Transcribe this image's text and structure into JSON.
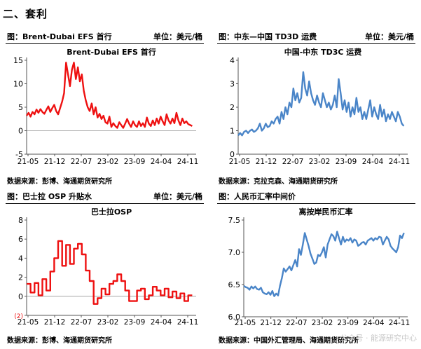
{
  "section": {
    "title": "二、套利"
  },
  "watermark": "公众号 · 能源研究中心",
  "colors": {
    "red": "#ee1111",
    "blue": "#4a85c8",
    "minus2": "#ee1111"
  },
  "panels": [
    {
      "id": "efs",
      "header_title": "图：Brent-Dubai EFS 首行",
      "header_unit": "单位：美元/桶",
      "source": "数据来源：彭博、海通期货研究所"
    },
    {
      "id": "td3c",
      "header_title": "图：中东—中国 TD3D 运费",
      "header_unit": "单位：美元/桶",
      "source": "数据来源：克拉克森、海通期货研究所"
    },
    {
      "id": "osp",
      "header_title": "图：巴士拉 OSP 升贴水",
      "header_unit": "单位：美元/桶",
      "source": "数据来源：彭博、海通期货研究所"
    },
    {
      "id": "cny",
      "header_title": "图：人民币汇率中间价",
      "header_unit": "",
      "source": "数据来源：中国外汇管理局、海通期货研究所"
    }
  ],
  "chart_data": [
    {
      "type": "line",
      "title": "Brent-Dubai EFS 首行",
      "color": "#ee1111",
      "ylim": [
        -5,
        15
      ],
      "yticks": [
        "-5",
        "0",
        "5",
        "10",
        "15"
      ],
      "ytick_values": [
        -5,
        0,
        5,
        10,
        15
      ],
      "x_tick_labels": [
        "21-05",
        "21-12",
        "22-07",
        "23-02",
        "23-09",
        "24-04",
        "24-11"
      ],
      "x_range": [
        0,
        43
      ],
      "x": [
        0,
        0.5,
        1,
        1.5,
        2,
        2.5,
        3,
        3.5,
        4,
        4.5,
        5,
        5.5,
        6,
        6.5,
        7,
        7.5,
        8,
        8.5,
        9,
        9.5,
        10,
        10.5,
        11,
        11.5,
        12,
        12.5,
        13,
        13.5,
        14,
        14.5,
        15,
        15.5,
        16,
        16.5,
        17,
        17.5,
        18,
        18.5,
        19,
        19.5,
        20,
        20.5,
        21,
        21.5,
        22,
        22.5,
        23,
        23.5,
        24,
        24.5,
        25,
        25.5,
        26,
        26.5,
        27,
        27.5,
        28,
        28.5,
        29,
        29.5,
        30,
        30.5,
        31,
        31.5,
        32,
        32.5,
        33,
        33.5,
        34,
        34.5,
        35,
        35.5,
        36,
        36.5,
        37,
        37.5,
        38,
        38.5,
        39,
        39.5,
        40,
        40.5,
        41,
        41.5,
        42
      ],
      "values": [
        3.2,
        3.8,
        3.0,
        4.0,
        3.5,
        4.5,
        3.8,
        4.6,
        4.0,
        3.6,
        4.4,
        5.2,
        4.0,
        4.8,
        5.5,
        4.2,
        3.5,
        4.8,
        6.2,
        8.0,
        14.5,
        12.0,
        9.5,
        13.0,
        14.5,
        11.0,
        13.5,
        10.5,
        12.0,
        8.5,
        6.5,
        5.0,
        4.2,
        5.8,
        3.5,
        5.0,
        2.8,
        3.6,
        2.5,
        3.2,
        1.8,
        1.5,
        3.0,
        0.8,
        1.6,
        1.0,
        0.6,
        1.8,
        1.2,
        0.6,
        1.5,
        2.5,
        1.5,
        0.8,
        2.0,
        1.2,
        0.8,
        2.0,
        1.0,
        1.6,
        0.8,
        2.8,
        1.5,
        1.0,
        2.2,
        1.2,
        2.6,
        1.5,
        3.0,
        2.0,
        1.2,
        3.5,
        2.2,
        1.5,
        2.6,
        1.6,
        3.8,
        2.2,
        1.2,
        2.6,
        1.6,
        2.0,
        1.4,
        1.2,
        1.0
      ]
    },
    {
      "type": "line",
      "title": "中国-中东 TD3C 运费",
      "color": "#4a85c8",
      "ylim": [
        0,
        4
      ],
      "yticks": [
        "0",
        "1",
        "2",
        "3",
        "4"
      ],
      "ytick_values": [
        0,
        1,
        2,
        3,
        4
      ],
      "x_tick_labels": [
        "21-05",
        "21-12",
        "22-07",
        "23-02",
        "23-09",
        "24-04",
        "24-11"
      ],
      "x_range": [
        0,
        43
      ],
      "x": [
        0,
        0.5,
        1,
        1.5,
        2,
        2.5,
        3,
        3.5,
        4,
        4.5,
        5,
        5.5,
        6,
        6.5,
        7,
        7.5,
        8,
        8.5,
        9,
        9.5,
        10,
        10.5,
        11,
        11.5,
        12,
        12.5,
        13,
        13.5,
        14,
        14.5,
        15,
        15.5,
        16,
        16.5,
        17,
        17.5,
        18,
        18.5,
        19,
        19.5,
        20,
        20.5,
        21,
        21.5,
        22,
        22.5,
        23,
        23.5,
        24,
        24.5,
        25,
        25.5,
        26,
        26.5,
        27,
        27.5,
        28,
        28.5,
        29,
        29.5,
        30,
        30.5,
        31,
        31.5,
        32,
        32.5,
        33,
        33.5,
        34,
        34.5,
        35,
        35.5,
        36,
        36.5,
        37,
        37.5,
        38,
        38.5,
        39,
        39.5,
        40,
        40.5,
        41,
        41.5,
        42
      ],
      "values": [
        0.8,
        0.9,
        0.8,
        0.95,
        1.0,
        0.9,
        1.0,
        1.05,
        0.95,
        1.0,
        1.1,
        1.3,
        1.0,
        1.1,
        1.3,
        1.15,
        1.2,
        1.4,
        1.3,
        1.5,
        1.6,
        1.3,
        1.8,
        1.5,
        2.0,
        1.7,
        2.2,
        2.0,
        2.8,
        2.3,
        2.6,
        2.2,
        2.4,
        3.5,
        2.8,
        2.5,
        3.1,
        2.6,
        2.3,
        2.1,
        2.5,
        2.2,
        2.0,
        2.6,
        2.3,
        2.0,
        2.2,
        1.9,
        2.1,
        2.5,
        2.0,
        3.2,
        2.6,
        1.9,
        2.3,
        1.8,
        2.2,
        1.6,
        2.0,
        1.7,
        2.4,
        1.8,
        2.0,
        1.5,
        1.8,
        1.5,
        1.9,
        2.3,
        1.6,
        2.0,
        1.7,
        1.5,
        2.1,
        1.6,
        1.9,
        1.4,
        1.7,
        1.5,
        1.8,
        1.6,
        1.4,
        1.8,
        1.6,
        1.3,
        1.2
      ]
    },
    {
      "type": "line",
      "title": "巴士拉OSP",
      "color": "#ee1111",
      "ylim": [
        -2,
        8
      ],
      "yticks": [
        "(2)",
        "0",
        "2",
        "4",
        "6",
        "8"
      ],
      "ytick_values": [
        -2,
        0,
        2,
        4,
        6,
        8
      ],
      "x_tick_labels": [
        "21-05",
        "21-12",
        "22-07",
        "23-02",
        "23-09",
        "24-04",
        "24-11"
      ],
      "x_range": [
        0,
        43
      ],
      "x": [
        0,
        1,
        1,
        2,
        2,
        3,
        3,
        4,
        4,
        5,
        5,
        6,
        6,
        7,
        7,
        8,
        8,
        9,
        9,
        10,
        10,
        11,
        11,
        12,
        12,
        13,
        13,
        14,
        14,
        15,
        15,
        16,
        16,
        17,
        17,
        18,
        18,
        19,
        19,
        20,
        20,
        21,
        21,
        22,
        22,
        23,
        23,
        24,
        24,
        25,
        25,
        26,
        26,
        27,
        27,
        28,
        28,
        29,
        29,
        30,
        30,
        31,
        31,
        32,
        32,
        33,
        33,
        34,
        34,
        35,
        35,
        36,
        36,
        37,
        37,
        38,
        38,
        39,
        39,
        40,
        40,
        41,
        41,
        42
      ],
      "values": [
        1.3,
        1.3,
        0.4,
        0.4,
        1.4,
        1.4,
        0.1,
        0.1,
        1.8,
        1.8,
        0.6,
        0.6,
        2.6,
        2.6,
        4.0,
        4.0,
        5.8,
        5.8,
        3.2,
        3.2,
        5.4,
        5.4,
        3.4,
        3.4,
        5.0,
        5.0,
        5.5,
        5.5,
        4.4,
        4.4,
        2.7,
        2.7,
        1.6,
        1.6,
        -0.8,
        -0.8,
        -0.2,
        -0.2,
        0.8,
        0.8,
        0.2,
        0.2,
        1.3,
        1.3,
        1.6,
        1.6,
        2.3,
        2.3,
        1.6,
        1.6,
        0.6,
        0.6,
        -0.5,
        -0.5,
        -0.5,
        -0.5,
        0.6,
        0.6,
        0.8,
        0.8,
        -0.3,
        -0.3,
        0.1,
        0.1,
        1.0,
        1.0,
        0.6,
        0.6,
        0.1,
        0.1,
        0.8,
        0.8,
        -0.1,
        -0.1,
        0.5,
        0.5,
        -0.2,
        -0.2,
        0.3,
        0.3,
        -0.5,
        -0.5,
        0.1,
        0.1
      ]
    },
    {
      "type": "line",
      "title": "离按岸民币汇率",
      "color": "#4a85c8",
      "ylim": [
        6.0,
        7.5
      ],
      "yticks": [
        "6.0",
        "6.5",
        "7.0",
        "7.5"
      ],
      "ytick_values": [
        6.0,
        6.5,
        7.0,
        7.5
      ],
      "x_tick_labels": [
        "21-05",
        "21-12",
        "22-07",
        "23-02",
        "23-09",
        "24-04",
        "24-11"
      ],
      "x_range": [
        0,
        43
      ],
      "x": [
        0,
        0.5,
        1,
        1.5,
        2,
        2.5,
        3,
        3.5,
        4,
        4.5,
        5,
        5.5,
        6,
        6.5,
        7,
        7.5,
        8,
        8.5,
        9,
        9.5,
        10,
        10.5,
        11,
        11.5,
        12,
        12.5,
        13,
        13.5,
        14,
        14.5,
        15,
        15.5,
        16,
        16.5,
        17,
        17.5,
        18,
        18.5,
        19,
        19.5,
        20,
        20.5,
        21,
        21.5,
        22,
        22.5,
        23,
        23.5,
        24,
        24.5,
        25,
        25.5,
        26,
        26.5,
        27,
        27.5,
        28,
        28.5,
        29,
        29.5,
        30,
        30.5,
        31,
        31.5,
        32,
        32.5,
        33,
        33.5,
        34,
        34.5,
        35,
        35.5,
        36,
        36.5,
        37,
        37.5,
        38,
        38.5,
        39,
        39.5,
        40,
        40.5,
        41,
        41.5,
        42
      ],
      "values": [
        6.48,
        6.46,
        6.45,
        6.42,
        6.47,
        6.44,
        6.47,
        6.43,
        6.42,
        6.45,
        6.38,
        6.36,
        6.35,
        6.38,
        6.34,
        6.4,
        6.32,
        6.36,
        6.33,
        6.48,
        6.6,
        6.75,
        6.7,
        6.74,
        6.78,
        6.72,
        6.8,
        6.88,
        6.78,
        7.05,
        6.96,
        7.12,
        7.3,
        7.2,
        7.1,
        6.98,
        6.9,
        6.82,
        6.84,
        6.96,
        6.94,
        7.0,
        7.08,
        6.92,
        7.12,
        7.2,
        7.28,
        7.25,
        7.18,
        7.32,
        7.22,
        7.12,
        7.24,
        7.16,
        7.2,
        7.18,
        7.22,
        7.15,
        7.2,
        7.18,
        7.1,
        7.12,
        7.15,
        7.16,
        7.12,
        7.18,
        7.2,
        7.22,
        7.18,
        7.22,
        7.2,
        7.24,
        7.23,
        7.12,
        7.18,
        7.24,
        7.2,
        7.1,
        7.06,
        7.03,
        7.0,
        7.08,
        7.26,
        7.22,
        7.3
      ]
    }
  ]
}
